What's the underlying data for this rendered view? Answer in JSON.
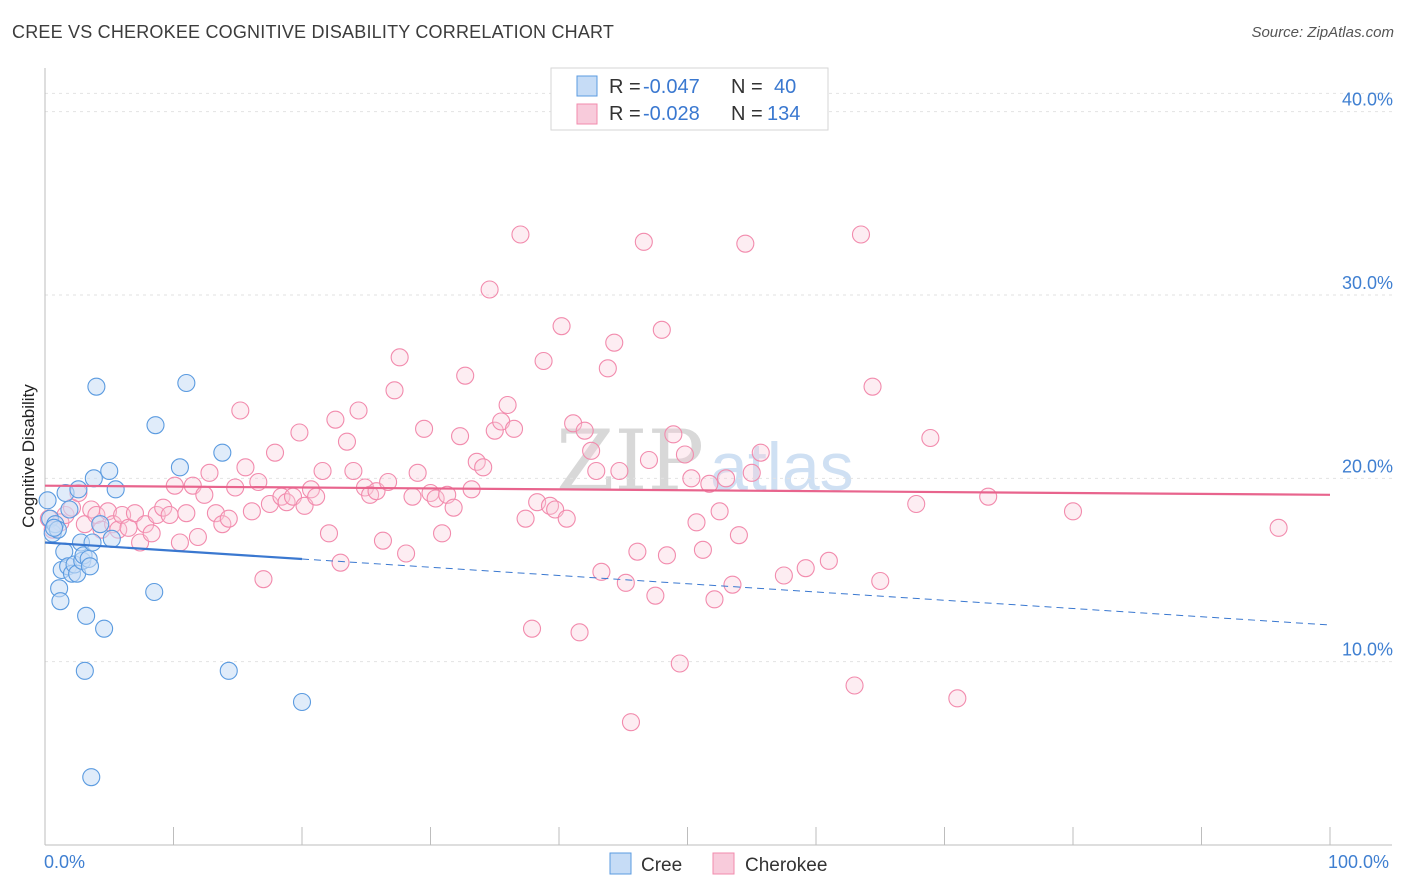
{
  "title": "CREE VS CHEROKEE COGNITIVE DISABILITY CORRELATION CHART",
  "source": "Source: ZipAtlas.com",
  "watermark": {
    "zip": "ZIP",
    "atlas": "atlas"
  },
  "colors": {
    "cree": "#5b9be0",
    "cree_line": "#3a78d0",
    "cherokee": "#f28bad",
    "cherokee_line": "#e8648d",
    "axis_text": "#3f7fd1"
  },
  "legend": {
    "rows": [
      {
        "r_label": "R = ",
        "r_value": "-0.047",
        "n_label": "N = ",
        "n_value": "40"
      },
      {
        "r_label": "R = ",
        "r_value": "-0.028",
        "n_label": "N = ",
        "n_value": "134"
      }
    ]
  },
  "bottom_legend": [
    "Cree",
    "Cherokee"
  ],
  "chart_data": {
    "type": "scatter",
    "title": "CREE VS CHEROKEE COGNITIVE DISABILITY CORRELATION CHART",
    "xlabel": "",
    "ylabel": "Cognitive Disability",
    "xlim": [
      0,
      100
    ],
    "ylim": [
      0,
      42
    ],
    "x_tick_labels": [
      "0.0%",
      "100.0%"
    ],
    "y_ticks": [
      10,
      20,
      30,
      40
    ],
    "y_tick_labels": [
      "10.0%",
      "20.0%",
      "30.0%",
      "40.0%"
    ],
    "grid": "horizontal dashed",
    "legend_position": "top-center",
    "series": [
      {
        "name": "Cree",
        "r": -0.047,
        "n": 40,
        "trend": {
          "x": [
            0,
            20
          ],
          "y": [
            16.5,
            15.6
          ],
          "dashed_extension": {
            "x": [
              20,
              100
            ],
            "y": [
              15.6,
              12.0
            ]
          }
        },
        "points": [
          [
            0.2,
            18.8
          ],
          [
            0.4,
            17.8
          ],
          [
            0.6,
            17.0
          ],
          [
            0.8,
            17.5
          ],
          [
            1.0,
            17.2
          ],
          [
            1.1,
            14.0
          ],
          [
            1.2,
            13.3
          ],
          [
            1.3,
            15.0
          ],
          [
            1.5,
            16.0
          ],
          [
            1.6,
            19.2
          ],
          [
            1.8,
            15.2
          ],
          [
            1.9,
            18.3
          ],
          [
            2.1,
            14.8
          ],
          [
            2.3,
            15.3
          ],
          [
            2.5,
            14.8
          ],
          [
            2.6,
            19.4
          ],
          [
            2.8,
            16.5
          ],
          [
            2.9,
            15.5
          ],
          [
            3.0,
            15.8
          ],
          [
            3.1,
            9.5
          ],
          [
            3.2,
            12.5
          ],
          [
            3.4,
            15.6
          ],
          [
            3.5,
            15.2
          ],
          [
            3.7,
            16.5
          ],
          [
            3.6,
            3.7
          ],
          [
            3.8,
            20.0
          ],
          [
            4.0,
            25.0
          ],
          [
            4.3,
            17.5
          ],
          [
            4.6,
            11.8
          ],
          [
            5.0,
            20.4
          ],
          [
            5.2,
            16.7
          ],
          [
            5.5,
            19.4
          ],
          [
            8.5,
            13.8
          ],
          [
            8.6,
            22.9
          ],
          [
            10.5,
            20.6
          ],
          [
            11.0,
            25.2
          ],
          [
            13.8,
            21.4
          ],
          [
            14.3,
            9.5
          ],
          [
            20.0,
            7.8
          ],
          [
            0.7,
            17.3
          ]
        ]
      },
      {
        "name": "Cherokee",
        "r": -0.028,
        "n": 134,
        "trend": {
          "x": [
            0,
            100
          ],
          "y": [
            19.6,
            19.1
          ]
        },
        "points": [
          [
            0.3,
            17.8
          ],
          [
            0.6,
            17.2
          ],
          [
            1.2,
            17.6
          ],
          [
            1.6,
            18.0
          ],
          [
            2.1,
            18.4
          ],
          [
            2.6,
            19.2
          ],
          [
            3.1,
            17.5
          ],
          [
            3.6,
            18.3
          ],
          [
            4.0,
            18.0
          ],
          [
            4.4,
            17.2
          ],
          [
            4.9,
            18.2
          ],
          [
            5.3,
            17.5
          ],
          [
            5.7,
            17.2
          ],
          [
            6.0,
            18.0
          ],
          [
            6.5,
            17.3
          ],
          [
            7.0,
            18.1
          ],
          [
            7.4,
            16.5
          ],
          [
            7.8,
            17.5
          ],
          [
            8.3,
            17.0
          ],
          [
            8.7,
            18.0
          ],
          [
            9.2,
            18.4
          ],
          [
            9.7,
            18.0
          ],
          [
            10.1,
            19.6
          ],
          [
            10.5,
            16.5
          ],
          [
            11.0,
            18.1
          ],
          [
            11.5,
            19.6
          ],
          [
            11.9,
            16.8
          ],
          [
            12.4,
            19.1
          ],
          [
            12.8,
            20.3
          ],
          [
            13.3,
            18.1
          ],
          [
            13.8,
            17.5
          ],
          [
            14.3,
            17.8
          ],
          [
            14.8,
            19.5
          ],
          [
            15.2,
            23.7
          ],
          [
            15.6,
            20.6
          ],
          [
            16.1,
            18.2
          ],
          [
            16.6,
            19.8
          ],
          [
            17.0,
            14.5
          ],
          [
            17.5,
            18.6
          ],
          [
            17.9,
            21.4
          ],
          [
            18.4,
            19.0
          ],
          [
            18.8,
            18.7
          ],
          [
            19.3,
            19.0
          ],
          [
            19.8,
            22.5
          ],
          [
            20.2,
            18.5
          ],
          [
            20.7,
            19.4
          ],
          [
            21.1,
            19.0
          ],
          [
            21.6,
            20.4
          ],
          [
            22.1,
            17.0
          ],
          [
            22.6,
            23.2
          ],
          [
            23.0,
            15.4
          ],
          [
            23.5,
            22.0
          ],
          [
            24.0,
            20.4
          ],
          [
            24.4,
            23.7
          ],
          [
            24.9,
            19.5
          ],
          [
            25.3,
            19.1
          ],
          [
            25.8,
            19.3
          ],
          [
            26.3,
            16.6
          ],
          [
            26.7,
            19.8
          ],
          [
            27.2,
            24.8
          ],
          [
            27.6,
            26.6
          ],
          [
            28.1,
            15.9
          ],
          [
            28.6,
            19.0
          ],
          [
            29.0,
            20.3
          ],
          [
            29.5,
            22.7
          ],
          [
            30.0,
            19.2
          ],
          [
            30.4,
            18.9
          ],
          [
            30.9,
            17.0
          ],
          [
            31.3,
            19.1
          ],
          [
            31.8,
            18.4
          ],
          [
            32.3,
            22.3
          ],
          [
            32.7,
            25.6
          ],
          [
            33.2,
            19.4
          ],
          [
            33.6,
            20.9
          ],
          [
            34.1,
            20.6
          ],
          [
            34.6,
            30.3
          ],
          [
            35.0,
            22.6
          ],
          [
            35.5,
            23.1
          ],
          [
            36.0,
            24.0
          ],
          [
            36.5,
            22.7
          ],
          [
            37.0,
            33.3
          ],
          [
            37.4,
            17.8
          ],
          [
            37.9,
            11.8
          ],
          [
            38.3,
            18.7
          ],
          [
            38.8,
            26.4
          ],
          [
            39.3,
            18.5
          ],
          [
            39.7,
            18.3
          ],
          [
            40.2,
            28.3
          ],
          [
            40.6,
            17.8
          ],
          [
            41.1,
            23.0
          ],
          [
            41.6,
            11.6
          ],
          [
            42.0,
            22.6
          ],
          [
            42.5,
            21.5
          ],
          [
            42.9,
            20.4
          ],
          [
            43.3,
            14.9
          ],
          [
            43.8,
            26.0
          ],
          [
            44.3,
            27.4
          ],
          [
            44.7,
            20.4
          ],
          [
            45.2,
            14.3
          ],
          [
            45.6,
            6.7
          ],
          [
            46.1,
            16.0
          ],
          [
            46.6,
            32.9
          ],
          [
            47.0,
            21.0
          ],
          [
            47.5,
            13.6
          ],
          [
            48.0,
            28.1
          ],
          [
            48.4,
            15.8
          ],
          [
            48.9,
            22.4
          ],
          [
            49.4,
            9.9
          ],
          [
            49.8,
            21.3
          ],
          [
            50.3,
            20.0
          ],
          [
            50.7,
            17.6
          ],
          [
            51.2,
            16.1
          ],
          [
            51.7,
            19.7
          ],
          [
            52.1,
            13.4
          ],
          [
            52.5,
            18.2
          ],
          [
            53.0,
            20.0
          ],
          [
            53.5,
            14.2
          ],
          [
            54.0,
            16.9
          ],
          [
            54.5,
            32.8
          ],
          [
            55.0,
            20.3
          ],
          [
            55.7,
            21.4
          ],
          [
            57.5,
            14.7
          ],
          [
            59.2,
            15.1
          ],
          [
            61.0,
            15.5
          ],
          [
            63.0,
            8.7
          ],
          [
            63.5,
            33.3
          ],
          [
            64.4,
            25.0
          ],
          [
            65.0,
            14.4
          ],
          [
            67.8,
            18.6
          ],
          [
            68.9,
            22.2
          ],
          [
            71.0,
            8.0
          ],
          [
            73.4,
            19.0
          ],
          [
            80.0,
            18.2
          ],
          [
            96.0,
            17.3
          ]
        ]
      }
    ]
  }
}
